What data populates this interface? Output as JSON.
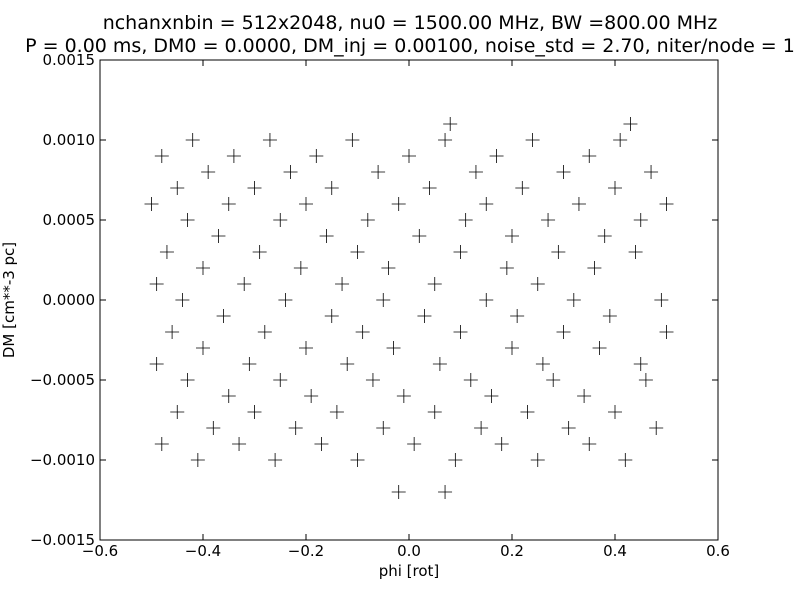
{
  "chart_data": {
    "type": "scatter",
    "title": [
      "nchanxnbin = 512x2048, nu0 = 1500.00 MHz, BW =800.00 MHz",
      "P = 0.00 ms, DM0 = 0.0000, DM_inj = 0.00100, noise_std = 2.70, niter/node = 1"
    ],
    "xlabel": "phi [rot]",
    "ylabel": "DM [cm**-3 pc]",
    "xlim": [
      -0.6,
      0.6
    ],
    "ylim": [
      -0.0015,
      0.0015
    ],
    "xticks": [
      -0.6,
      -0.4,
      -0.2,
      0.0,
      0.2,
      0.4,
      0.6
    ],
    "xtick_labels": [
      "−0.6",
      "−0.4",
      "−0.2",
      "0.0",
      "0.2",
      "0.4",
      "0.6"
    ],
    "yticks": [
      -0.0015,
      -0.001,
      -0.0005,
      0.0,
      0.0005,
      0.001,
      0.0015
    ],
    "ytick_labels": [
      "−0.0015",
      "−0.0010",
      "−0.0005",
      "0.0000",
      "0.0005",
      "0.0010",
      "0.0015"
    ],
    "marker": "+",
    "color": "#000000",
    "grid": false,
    "points": [
      [
        -0.5,
        0.0006
      ],
      [
        -0.49,
        0.0001
      ],
      [
        -0.49,
        -0.0004
      ],
      [
        -0.48,
        0.0009
      ],
      [
        -0.48,
        -0.0009
      ],
      [
        -0.47,
        0.0003
      ],
      [
        -0.46,
        -0.0002
      ],
      [
        -0.45,
        0.0007
      ],
      [
        -0.45,
        -0.0007
      ],
      [
        -0.44,
        0.0
      ],
      [
        -0.43,
        0.0005
      ],
      [
        -0.43,
        -0.0005
      ],
      [
        -0.42,
        0.001
      ],
      [
        -0.41,
        -0.001
      ],
      [
        -0.4,
        0.0002
      ],
      [
        -0.4,
        -0.0003
      ],
      [
        -0.39,
        0.0008
      ],
      [
        -0.38,
        -0.0008
      ],
      [
        -0.37,
        0.0004
      ],
      [
        -0.36,
        -0.0001
      ],
      [
        -0.35,
        0.0006
      ],
      [
        -0.35,
        -0.0006
      ],
      [
        -0.34,
        0.0009
      ],
      [
        -0.33,
        -0.0009
      ],
      [
        -0.32,
        0.0001
      ],
      [
        -0.31,
        -0.0004
      ],
      [
        -0.3,
        0.0007
      ],
      [
        -0.3,
        -0.0007
      ],
      [
        -0.29,
        0.0003
      ],
      [
        -0.28,
        -0.0002
      ],
      [
        -0.27,
        0.001
      ],
      [
        -0.26,
        -0.001
      ],
      [
        -0.25,
        0.0005
      ],
      [
        -0.25,
        -0.0005
      ],
      [
        -0.24,
        0.0
      ],
      [
        -0.23,
        0.0008
      ],
      [
        -0.22,
        -0.0008
      ],
      [
        -0.21,
        0.0002
      ],
      [
        -0.2,
        -0.0003
      ],
      [
        -0.2,
        0.0006
      ],
      [
        -0.19,
        -0.0006
      ],
      [
        -0.18,
        0.0009
      ],
      [
        -0.17,
        -0.0009
      ],
      [
        -0.16,
        0.0004
      ],
      [
        -0.15,
        -0.0001
      ],
      [
        -0.15,
        0.0007
      ],
      [
        -0.14,
        -0.0007
      ],
      [
        -0.13,
        0.0001
      ],
      [
        -0.12,
        -0.0004
      ],
      [
        -0.11,
        0.001
      ],
      [
        -0.1,
        -0.001
      ],
      [
        -0.1,
        0.0003
      ],
      [
        -0.09,
        -0.0002
      ],
      [
        -0.08,
        0.0005
      ],
      [
        -0.07,
        -0.0005
      ],
      [
        -0.06,
        0.0008
      ],
      [
        -0.05,
        -0.0008
      ],
      [
        -0.05,
        0.0
      ],
      [
        -0.04,
        0.0002
      ],
      [
        -0.03,
        -0.0003
      ],
      [
        -0.02,
        0.0006
      ],
      [
        -0.02,
        -0.0012
      ],
      [
        -0.01,
        -0.0006
      ],
      [
        0.0,
        0.0009
      ],
      [
        0.01,
        -0.0009
      ],
      [
        0.02,
        0.0004
      ],
      [
        0.03,
        -0.0001
      ],
      [
        0.04,
        0.0007
      ],
      [
        0.05,
        -0.0007
      ],
      [
        0.05,
        0.0001
      ],
      [
        0.06,
        -0.0004
      ],
      [
        0.07,
        0.001
      ],
      [
        0.07,
        -0.0012
      ],
      [
        0.08,
        0.0011
      ],
      [
        0.09,
        -0.001
      ],
      [
        0.1,
        0.0003
      ],
      [
        0.1,
        -0.0002
      ],
      [
        0.11,
        0.0005
      ],
      [
        0.12,
        -0.0005
      ],
      [
        0.13,
        0.0008
      ],
      [
        0.14,
        -0.0008
      ],
      [
        0.15,
        0.0
      ],
      [
        0.15,
        0.0006
      ],
      [
        0.16,
        -0.0006
      ],
      [
        0.17,
        0.0009
      ],
      [
        0.18,
        -0.0009
      ],
      [
        0.19,
        0.0002
      ],
      [
        0.2,
        -0.0003
      ],
      [
        0.2,
        0.0004
      ],
      [
        0.21,
        -0.0001
      ],
      [
        0.22,
        0.0007
      ],
      [
        0.23,
        -0.0007
      ],
      [
        0.24,
        0.001
      ],
      [
        0.25,
        -0.001
      ],
      [
        0.25,
        0.0001
      ],
      [
        0.26,
        -0.0004
      ],
      [
        0.27,
        0.0005
      ],
      [
        0.28,
        -0.0005
      ],
      [
        0.29,
        0.0003
      ],
      [
        0.3,
        -0.0002
      ],
      [
        0.3,
        0.0008
      ],
      [
        0.31,
        -0.0008
      ],
      [
        0.32,
        0.0
      ],
      [
        0.33,
        0.0006
      ],
      [
        0.34,
        -0.0006
      ],
      [
        0.35,
        0.0009
      ],
      [
        0.35,
        -0.0009
      ],
      [
        0.36,
        0.0002
      ],
      [
        0.37,
        -0.0003
      ],
      [
        0.38,
        0.0004
      ],
      [
        0.39,
        -0.0001
      ],
      [
        0.4,
        0.0007
      ],
      [
        0.4,
        -0.0007
      ],
      [
        0.41,
        0.001
      ],
      [
        0.42,
        -0.001
      ],
      [
        0.43,
        0.0011
      ],
      [
        0.44,
        0.0003
      ],
      [
        0.45,
        -0.0004
      ],
      [
        0.45,
        0.0005
      ],
      [
        0.46,
        -0.0005
      ],
      [
        0.47,
        0.0008
      ],
      [
        0.48,
        -0.0008
      ],
      [
        0.49,
        0.0
      ],
      [
        0.5,
        0.0006
      ],
      [
        0.5,
        -0.0002
      ]
    ]
  }
}
